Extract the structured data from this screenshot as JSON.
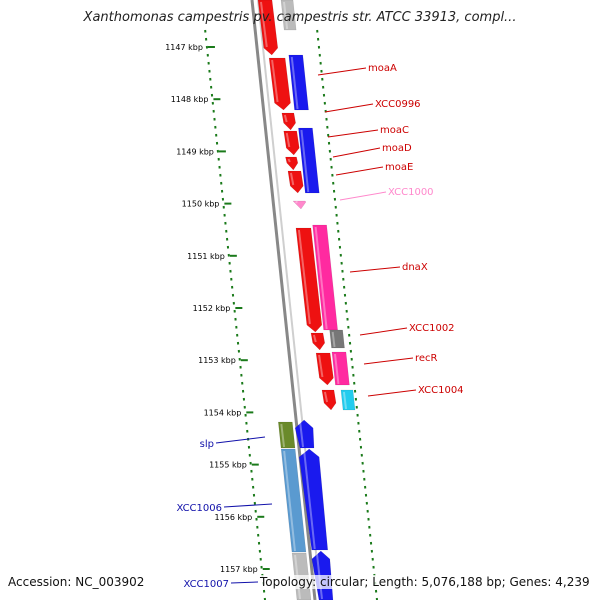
{
  "title": "Xanthomonas campestris pv. campestris str. ATCC 33913, compl...",
  "footer": {
    "accession": "Accession: NC_003902",
    "topology": "Topology: circular; Length: 5,076,188 bp; Genes: 4,239"
  },
  "colors": {
    "forward_gene": "#ee1111",
    "reverse_gene": "#1a1aee",
    "right_label": "#cc0000",
    "left_label": "#1111aa",
    "pseudo_label": "#ff88cc",
    "tick": "#1a7a1a",
    "backbone": "#888888"
  },
  "ticks": [
    "1147 kbp",
    "1148 kbp",
    "1149 kbp",
    "1150 kbp",
    "1151 kbp",
    "1152 kbp",
    "1153 kbp",
    "1154 kbp",
    "1155 kbp",
    "1156 kbp",
    "1157 kbp"
  ],
  "right_labels": [
    {
      "text": "moaA",
      "color": "#cc0000"
    },
    {
      "text": "XCC0996",
      "color": "#cc0000"
    },
    {
      "text": "moaC",
      "color": "#cc0000"
    },
    {
      "text": "moaD",
      "color": "#cc0000"
    },
    {
      "text": "moaE",
      "color": "#cc0000"
    },
    {
      "text": "XCC1000",
      "color": "#ff88cc"
    },
    {
      "text": "dnaX",
      "color": "#cc0000"
    },
    {
      "text": "XCC1002",
      "color": "#cc0000"
    },
    {
      "text": "recR",
      "color": "#cc0000"
    },
    {
      "text": "XCC1004",
      "color": "#cc0000"
    }
  ],
  "left_labels": [
    {
      "text": "slp",
      "color": "#1111aa"
    },
    {
      "text": "XCC1006",
      "color": "#1111aa"
    },
    {
      "text": "XCC1007",
      "color": "#1111aa"
    }
  ]
}
